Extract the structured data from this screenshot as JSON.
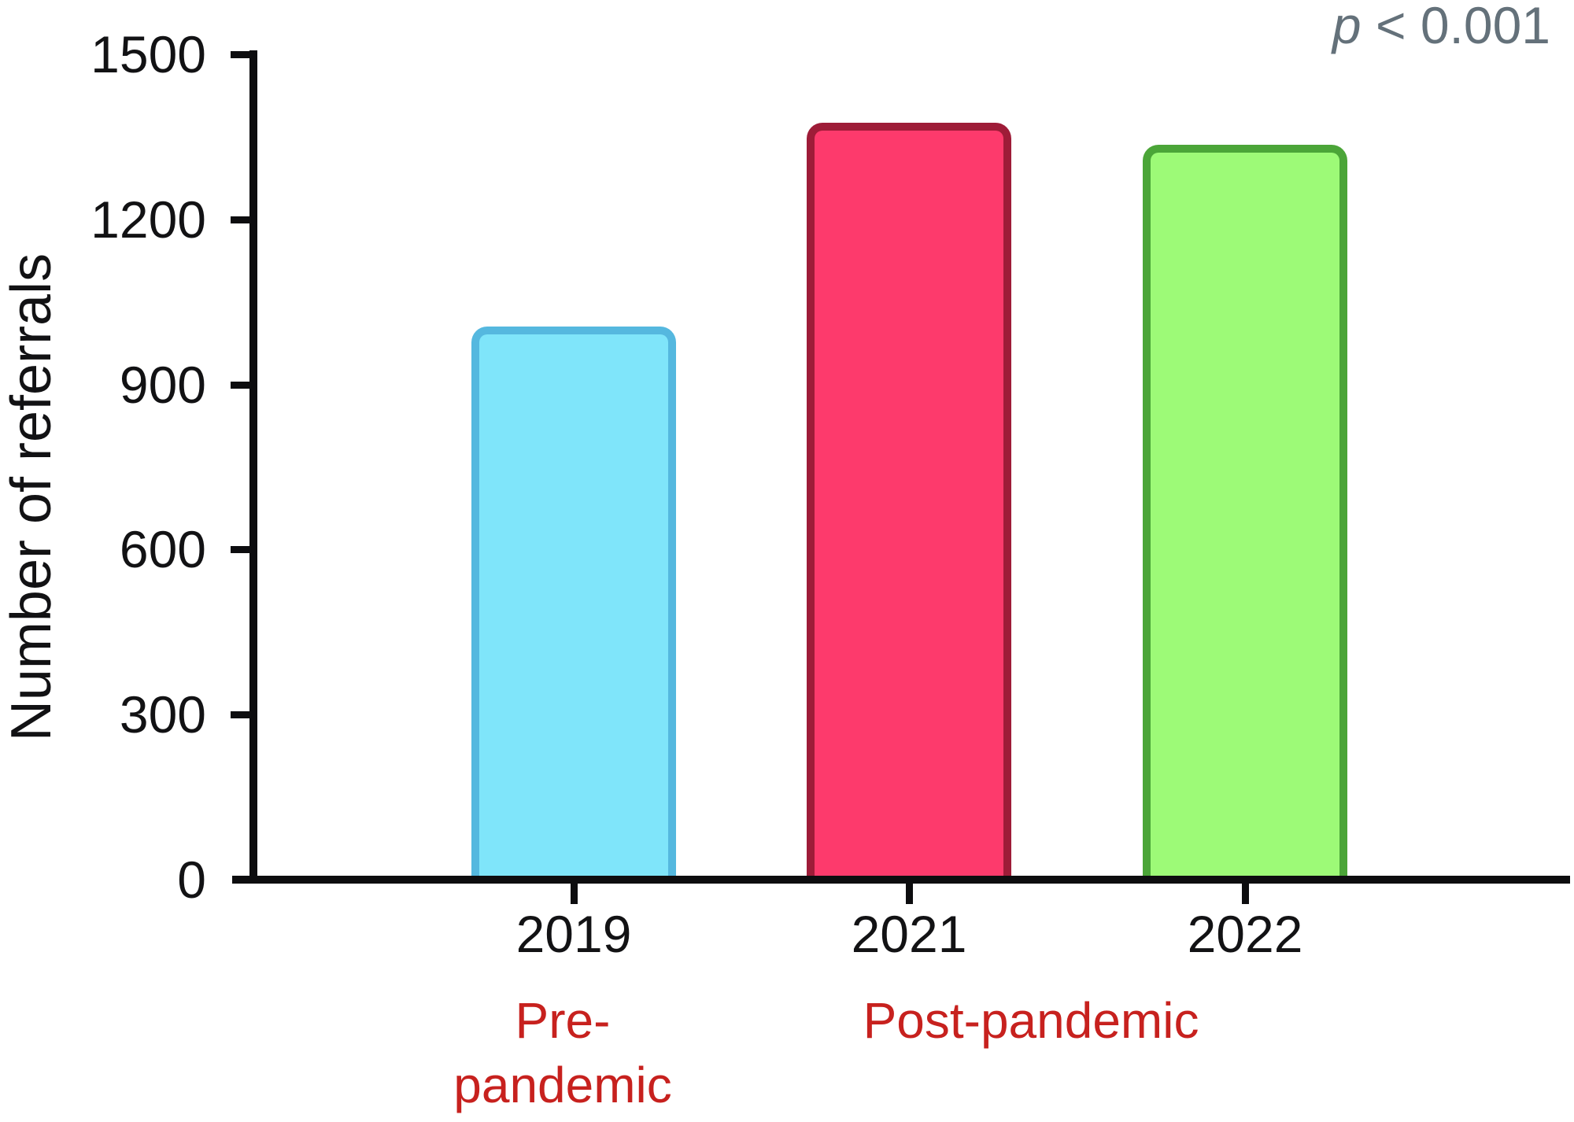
{
  "chart_data": {
    "type": "bar",
    "title": "",
    "xlabel": "",
    "ylabel": "Number of referrals",
    "ylim": [
      0,
      1500
    ],
    "yticks": [
      0,
      300,
      600,
      900,
      1200,
      1500
    ],
    "categories": [
      "2019",
      "2021",
      "2022"
    ],
    "values": [
      1005,
      1375,
      1335
    ],
    "grid": false,
    "legend": false,
    "bars": [
      {
        "category": "2019",
        "value": 1005,
        "fill": "#7FE5FA",
        "stroke": "#55B8DF"
      },
      {
        "category": "2021",
        "value": 1375,
        "fill": "#FD3A6C",
        "stroke": "#9E1C38"
      },
      {
        "category": "2022",
        "value": 1335,
        "fill": "#9DFA77",
        "stroke": "#4BA538"
      }
    ],
    "p_label": {
      "symbol": "p",
      "rest": " < 0.001",
      "color": "#64717A"
    },
    "group_labels": {
      "pre": {
        "line1": "Pre-",
        "line2": "pandemic"
      },
      "post": {
        "line1": "Post-pandemic"
      },
      "color": "#C7211E"
    },
    "axis_color": "#0D0D0F"
  }
}
